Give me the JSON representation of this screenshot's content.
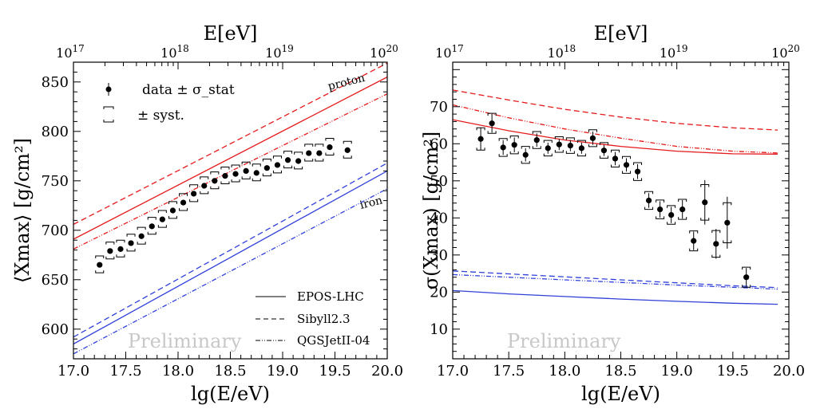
{
  "chart_data": [
    {
      "type": "scatter",
      "id": "xmax",
      "xlabel": "lg(E/eV)",
      "ylabel": "⟨Xmax⟩ [g/cm²]",
      "top_xlabel": "E[eV]",
      "xlim": [
        17.0,
        20.0
      ],
      "ylim": [
        570,
        870
      ],
      "x_ticks": [
        "17.0",
        "17.5",
        "18.0",
        "18.5",
        "19.0",
        "19.5",
        "20.0"
      ],
      "y_ticks": [
        "600",
        "650",
        "700",
        "750",
        "800",
        "850"
      ],
      "top_ticks": [
        "10^17",
        "10^18",
        "10^19",
        "10^20"
      ],
      "watermark": "Preliminary",
      "labels": {
        "proton": "proton",
        "iron": "iron"
      },
      "legend": {
        "data": "data ± σ_stat",
        "syst": "± syst."
      },
      "model_legend": [
        "EPOS-LHC",
        "Sibyll2.3",
        "QGSJetII-04"
      ],
      "data": {
        "x": [
          17.25,
          17.35,
          17.45,
          17.55,
          17.65,
          17.75,
          17.85,
          17.95,
          18.05,
          18.15,
          18.25,
          18.35,
          18.45,
          18.55,
          18.65,
          18.75,
          18.85,
          18.95,
          19.05,
          19.15,
          19.25,
          19.35,
          19.45,
          19.62
        ],
        "y": [
          665,
          679,
          681,
          687,
          694,
          704,
          711,
          720,
          728,
          737,
          745,
          750,
          755,
          757,
          760,
          758,
          763,
          766,
          771,
          770,
          778,
          778,
          784,
          781
        ],
        "syst_lo": [
          8,
          8,
          8,
          8,
          8,
          8,
          8,
          8,
          8,
          8,
          8,
          8,
          8,
          8,
          8,
          8,
          8,
          8,
          8,
          8,
          8,
          8,
          8,
          8
        ],
        "syst_hi": [
          9,
          9,
          9,
          9,
          9,
          9,
          9,
          9,
          9,
          9,
          9,
          9,
          9,
          9,
          9,
          9,
          9,
          9,
          9,
          9,
          9,
          9,
          9,
          9
        ]
      },
      "models": [
        {
          "name": "EPOS-LHC proton",
          "color": "#e41a1c",
          "style": "solid",
          "x": [
            17.0,
            20.0
          ],
          "y": [
            691,
            855
          ]
        },
        {
          "name": "Sibyll2.3 proton",
          "color": "#e41a1c",
          "style": "dashed",
          "x": [
            17.0,
            20.0
          ],
          "y": [
            706,
            869
          ]
        },
        {
          "name": "QGSJetII-04 proton",
          "color": "#e41a1c",
          "style": "dashdotdot",
          "x": [
            17.0,
            20.0
          ],
          "y": [
            681,
            838
          ]
        },
        {
          "name": "EPOS-LHC iron",
          "color": "#3040d8",
          "style": "solid",
          "x": [
            17.0,
            20.0
          ],
          "y": [
            585,
            760
          ]
        },
        {
          "name": "Sibyll2.3 iron",
          "color": "#3040d8",
          "style": "dashed",
          "x": [
            17.0,
            20.0
          ],
          "y": [
            592,
            768
          ]
        },
        {
          "name": "QGSJetII-04 iron",
          "color": "#3040d8",
          "style": "dashdotdot",
          "x": [
            17.0,
            20.0
          ],
          "y": [
            575,
            742
          ]
        }
      ]
    },
    {
      "type": "scatter",
      "id": "sigma",
      "xlabel": "lg(E/eV)",
      "ylabel": "σ(Xmax) [g/cm²]",
      "top_xlabel": "E[eV]",
      "xlim": [
        17.0,
        20.0
      ],
      "ylim": [
        2,
        82
      ],
      "x_ticks": [
        "17.0",
        "17.5",
        "18.0",
        "18.5",
        "19.0",
        "19.5",
        "20.0"
      ],
      "y_ticks": [
        "10",
        "20",
        "30",
        "40",
        "50",
        "60",
        "70"
      ],
      "top_ticks": [
        "10^17",
        "10^18",
        "10^19",
        "10^20"
      ],
      "watermark": "Preliminary",
      "data": {
        "x": [
          17.25,
          17.35,
          17.45,
          17.55,
          17.65,
          17.75,
          17.85,
          17.95,
          18.05,
          18.15,
          18.25,
          18.35,
          18.45,
          18.55,
          18.65,
          18.75,
          18.85,
          18.95,
          19.05,
          19.15,
          19.25,
          19.35,
          19.45,
          19.62
        ],
        "y": [
          61.3,
          65.5,
          59.0,
          59.7,
          57.0,
          61.0,
          58.8,
          59.8,
          59.5,
          58.8,
          61.5,
          58.2,
          56.0,
          54.3,
          52.5,
          44.7,
          42.3,
          40.8,
          42.3,
          33.8,
          44.2,
          33.0,
          38.7,
          24.0
        ],
        "err": [
          3.0,
          2.5,
          2.0,
          2.0,
          1.8,
          1.8,
          1.5,
          1.5,
          1.5,
          1.5,
          1.8,
          1.5,
          1.8,
          1.8,
          2.0,
          2.0,
          2.2,
          2.2,
          2.5,
          2.5,
          6.0,
          4.0,
          7.0,
          2.5
        ],
        "syst": [
          1.2,
          1.2,
          1.2,
          1.2,
          1.2,
          1.2,
          1.2,
          1.2,
          1.2,
          1.2,
          1.2,
          1.2,
          1.2,
          1.2,
          1.2,
          1.2,
          1.2,
          1.2,
          1.2,
          1.2,
          1.2,
          1.2,
          1.2,
          1.2
        ]
      },
      "models": [
        {
          "name": "EPOS-LHC proton",
          "color": "#e41a1c",
          "style": "solid",
          "x": [
            17.0,
            17.5,
            18.0,
            18.5,
            19.0,
            19.5,
            19.9
          ],
          "y": [
            66.5,
            63.5,
            61.0,
            59.3,
            58.0,
            57.3,
            57.2
          ]
        },
        {
          "name": "Sibyll2.3 proton",
          "color": "#e41a1c",
          "style": "dashed",
          "x": [
            17.0,
            17.5,
            18.0,
            18.5,
            19.0,
            19.5,
            19.9
          ],
          "y": [
            74.5,
            71.8,
            69.3,
            67.2,
            65.5,
            64.3,
            63.7
          ]
        },
        {
          "name": "QGSJetII-04 proton",
          "color": "#e41a1c",
          "style": "dashdotdot",
          "x": [
            17.0,
            17.5,
            18.0,
            18.5,
            19.0,
            19.5,
            19.9
          ],
          "y": [
            70.5,
            67.0,
            64.0,
            61.5,
            59.3,
            58.0,
            57.5
          ]
        },
        {
          "name": "EPOS-LHC iron",
          "color": "#3040d8",
          "style": "solid",
          "x": [
            17.0,
            17.5,
            18.0,
            18.5,
            19.0,
            19.5,
            19.9
          ],
          "y": [
            20.4,
            19.5,
            18.8,
            18.1,
            17.5,
            17.0,
            16.7
          ]
        },
        {
          "name": "Sibyll2.3 iron",
          "color": "#3040d8",
          "style": "dashed",
          "x": [
            17.0,
            17.5,
            18.0,
            18.5,
            19.0,
            19.5,
            19.9
          ],
          "y": [
            25.7,
            24.9,
            24.1,
            23.3,
            22.5,
            21.7,
            21.2
          ]
        },
        {
          "name": "QGSJetII-04 iron",
          "color": "#3040d8",
          "style": "dashdotdot",
          "x": [
            17.0,
            17.5,
            18.0,
            18.5,
            19.0,
            19.5,
            19.9
          ],
          "y": [
            24.7,
            24.0,
            23.3,
            22.6,
            21.9,
            21.3,
            20.8
          ]
        }
      ]
    }
  ]
}
